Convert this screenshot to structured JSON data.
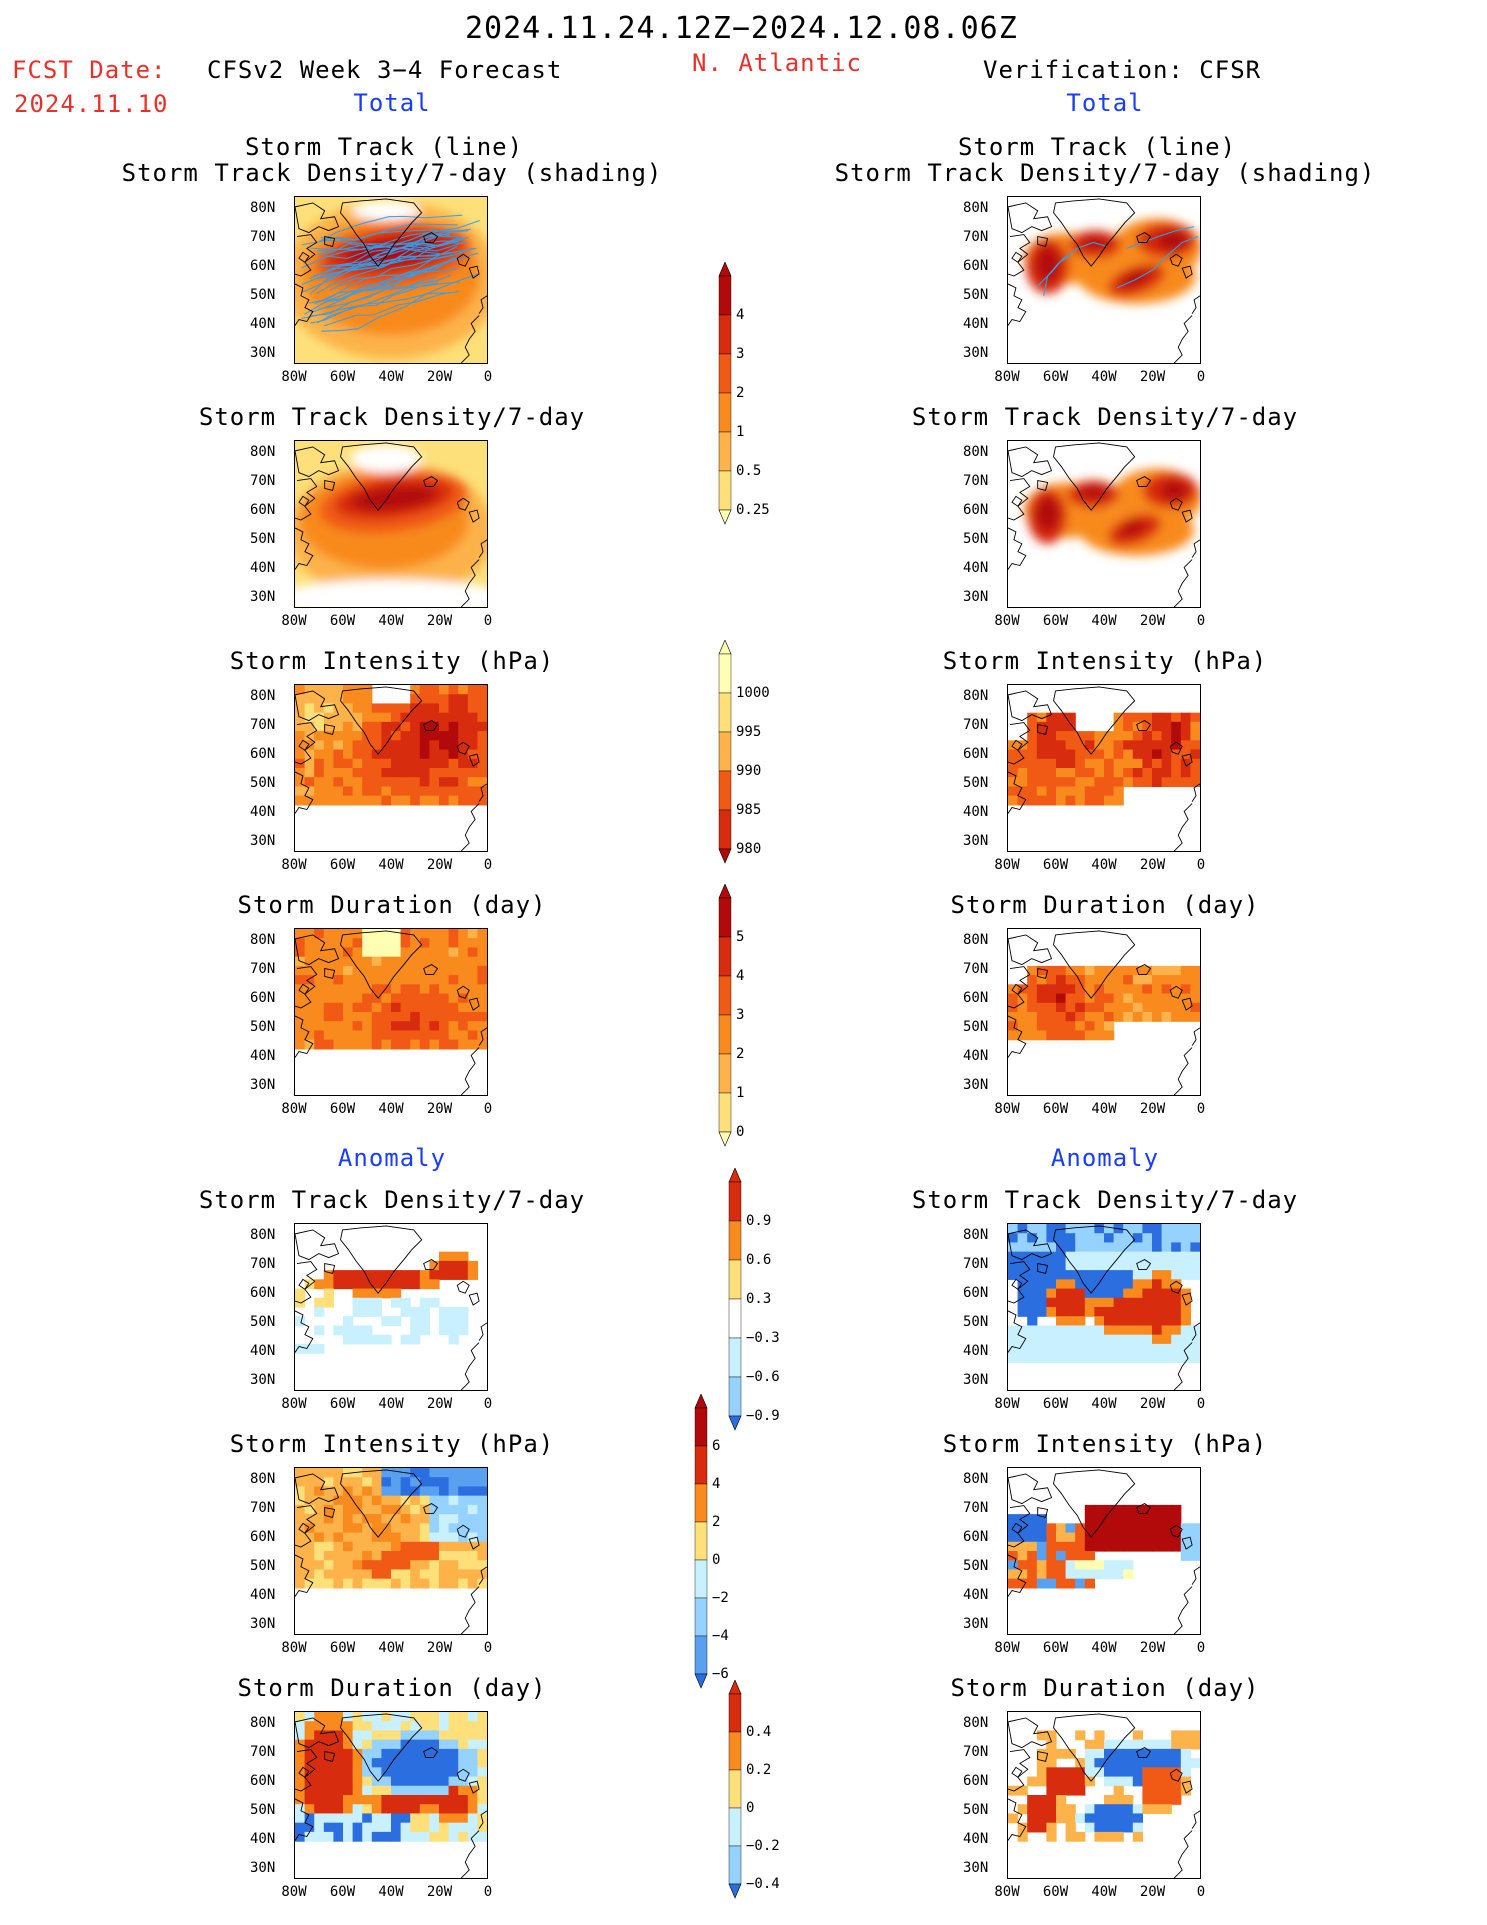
{
  "header": {
    "period": "2024.11.24.12Z−2024.12.08.06Z",
    "fcst_label": "FCST Date:",
    "fcst_date": "2024.11.10",
    "model": "CFSv2 Week 3−4 Forecast",
    "region": "N. Atlantic",
    "verification": "Verification: CFSR",
    "total_left": "Total",
    "total_right": "Total",
    "anomaly_left": "Anomaly",
    "anomaly_right": "Anomaly"
  },
  "axes": {
    "lat_labels": [
      "80N",
      "70N",
      "60N",
      "50N",
      "40N",
      "30N"
    ],
    "lon_labels": [
      "80W",
      "60W",
      "40W",
      "20W",
      "0"
    ]
  },
  "panels": {
    "fc_track_title_1": "Storm Track (line)",
    "fc_track_title_2": "Storm Track Density/7-day (shading)",
    "vf_track_title_1": "Storm Track (line)",
    "vf_track_title_2": "Storm Track Density/7-day (shading)",
    "fc_density": "Storm Track Density/7-day",
    "vf_density": "Storm Track Density/7-day",
    "fc_intensity": "Storm Intensity (hPa)",
    "vf_intensity": "Storm Intensity (hPa)",
    "fc_duration": "Storm Duration (day)",
    "vf_duration": "Storm Duration (day)",
    "fc_anom_density": "Storm Track Density/7-day",
    "vf_anom_density": "Storm Track Density/7-day",
    "fc_anom_intensity": "Storm Intensity (hPa)",
    "vf_anom_intensity": "Storm Intensity (hPa)",
    "fc_anom_duration": "Storm Duration (day)",
    "vf_anom_duration": "Storm Duration (day)"
  },
  "colorbars": {
    "density": [
      "4",
      "3",
      "2",
      "1",
      "0.5",
      "0.25"
    ],
    "intensity": [
      "1000",
      "995",
      "990",
      "985",
      "980"
    ],
    "duration": [
      "5",
      "4",
      "3",
      "2",
      "1",
      "0"
    ],
    "anom_density": [
      "0.9",
      "0.6",
      "0.3",
      "−0.3",
      "−0.6",
      "−0.9"
    ],
    "anom_intensity": [
      "6",
      "4",
      "2",
      "0",
      "−2",
      "−4",
      "−6"
    ],
    "anom_duration": [
      "0.4",
      "0.2",
      "0",
      "−0.2",
      "−0.4"
    ]
  },
  "colors": {
    "warm": [
      "#ffffb4",
      "#fde07a",
      "#fdb24a",
      "#f88a1e",
      "#f05a14",
      "#d82c0e",
      "#b20a0a"
    ],
    "cool": [
      "#c8f0ff",
      "#96d2ff",
      "#5aa0f0",
      "#2a6ee0",
      "#1050c8"
    ],
    "track_line": "#30a0f0",
    "title_red": "#e8302a",
    "title_blue": "#1a3cff"
  }
}
